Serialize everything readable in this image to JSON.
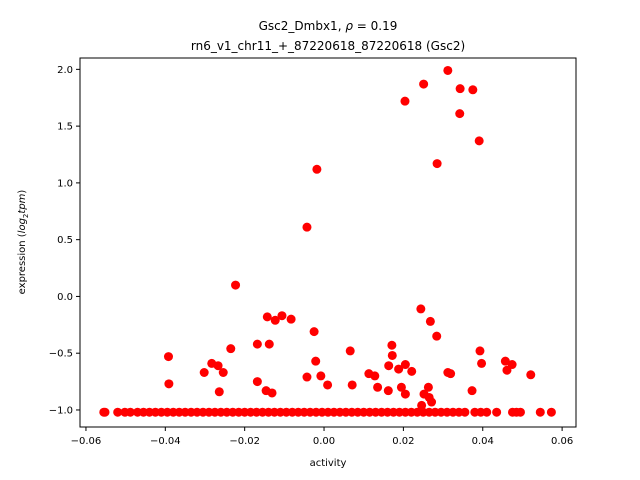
{
  "chart_data": {
    "type": "scatter",
    "title_line1_prefix": "Gsc2_Dmbx1, ",
    "title_rho_symbol": "ρ",
    "title_rho_value": " = 0.19",
    "title_line2": "rn6_v1_chr11_+_87220618_87220618 (Gsc2)",
    "xlabel": "activity",
    "ylabel_prefix": "expression (",
    "ylabel_math_base": "log",
    "ylabel_math_sub": "2",
    "ylabel_math_tail": "tpm",
    "ylabel_suffix": ")",
    "xlim": [
      -0.0615,
      0.0635
    ],
    "ylim": [
      -1.15,
      2.1
    ],
    "xticks": [
      -0.06,
      -0.04,
      -0.02,
      0.0,
      0.02,
      0.04,
      0.06
    ],
    "xtick_labels": [
      "−0.06",
      "−0.04",
      "−0.02",
      "0.00",
      "0.02",
      "0.04",
      "0.06"
    ],
    "yticks": [
      -1.0,
      -0.5,
      0.0,
      0.5,
      1.0,
      1.5,
      2.0
    ],
    "ytick_labels": [
      "−1.0",
      "−0.5",
      "0.0",
      "0.5",
      "1.0",
      "1.5",
      "2.0"
    ],
    "marker_color": "#ff0000",
    "series": [
      {
        "name": "samples",
        "points": [
          [
            0.0312,
            1.99
          ],
          [
            0.0251,
            1.87
          ],
          [
            0.0343,
            1.83
          ],
          [
            0.0375,
            1.82
          ],
          [
            0.0204,
            1.72
          ],
          [
            0.0342,
            1.61
          ],
          [
            0.0391,
            1.37
          ],
          [
            0.0285,
            1.17
          ],
          [
            -0.0018,
            1.12
          ],
          [
            -0.0043,
            0.61
          ],
          [
            -0.0223,
            0.1
          ],
          [
            0.0244,
            -0.11
          ],
          [
            -0.0143,
            -0.18
          ],
          [
            -0.0106,
            -0.17
          ],
          [
            -0.0123,
            -0.21
          ],
          [
            -0.0083,
            -0.2
          ],
          [
            0.0268,
            -0.22
          ],
          [
            -0.0025,
            -0.31
          ],
          [
            0.0284,
            -0.35
          ],
          [
            -0.0138,
            -0.42
          ],
          [
            -0.0168,
            -0.42
          ],
          [
            0.0171,
            -0.43
          ],
          [
            -0.0235,
            -0.46
          ],
          [
            0.0066,
            -0.48
          ],
          [
            0.0393,
            -0.48
          ],
          [
            -0.0392,
            -0.53
          ],
          [
            0.0172,
            -0.52
          ],
          [
            -0.0021,
            -0.57
          ],
          [
            0.0457,
            -0.57
          ],
          [
            -0.0267,
            -0.61
          ],
          [
            -0.0283,
            -0.59
          ],
          [
            0.0163,
            -0.61
          ],
          [
            0.0205,
            -0.6
          ],
          [
            0.0397,
            -0.59
          ],
          [
            0.0474,
            -0.6
          ],
          [
            -0.0302,
            -0.67
          ],
          [
            -0.0254,
            -0.67
          ],
          [
            0.0188,
            -0.64
          ],
          [
            0.0221,
            -0.66
          ],
          [
            0.0312,
            -0.67
          ],
          [
            0.0319,
            -0.68
          ],
          [
            0.0461,
            -0.65
          ],
          [
            0.0521,
            -0.69
          ],
          [
            -0.0043,
            -0.71
          ],
          [
            -0.0008,
            -0.7
          ],
          [
            0.0113,
            -0.68
          ],
          [
            0.0128,
            -0.7
          ],
          [
            -0.0391,
            -0.77
          ],
          [
            -0.0168,
            -0.75
          ],
          [
            0.0009,
            -0.78
          ],
          [
            0.0071,
            -0.78
          ],
          [
            0.0135,
            -0.8
          ],
          [
            0.0195,
            -0.8
          ],
          [
            -0.0146,
            -0.83
          ],
          [
            -0.0264,
            -0.84
          ],
          [
            -0.0131,
            -0.85
          ],
          [
            0.0162,
            -0.83
          ],
          [
            0.0205,
            -0.86
          ],
          [
            0.0263,
            -0.8
          ],
          [
            0.0252,
            -0.86
          ],
          [
            0.0265,
            -0.89
          ],
          [
            0.0373,
            -0.83
          ],
          [
            0.0271,
            -0.93
          ],
          [
            0.0246,
            -0.96
          ],
          [
            -0.0555,
            -1.02
          ],
          [
            -0.0552,
            -1.02
          ],
          [
            -0.052,
            -1.02
          ],
          [
            -0.0502,
            -1.02
          ],
          [
            -0.0488,
            -1.02
          ],
          [
            -0.047,
            -1.02
          ],
          [
            -0.0455,
            -1.02
          ],
          [
            -0.044,
            -1.02
          ],
          [
            -0.0425,
            -1.02
          ],
          [
            -0.041,
            -1.02
          ],
          [
            -0.0395,
            -1.02
          ],
          [
            -0.038,
            -1.02
          ],
          [
            -0.0365,
            -1.02
          ],
          [
            -0.035,
            -1.02
          ],
          [
            -0.0335,
            -1.02
          ],
          [
            -0.032,
            -1.02
          ],
          [
            -0.0305,
            -1.02
          ],
          [
            -0.029,
            -1.02
          ],
          [
            -0.0275,
            -1.02
          ],
          [
            -0.026,
            -1.02
          ],
          [
            -0.0245,
            -1.02
          ],
          [
            -0.023,
            -1.02
          ],
          [
            -0.0215,
            -1.02
          ],
          [
            -0.02,
            -1.02
          ],
          [
            -0.0185,
            -1.02
          ],
          [
            -0.017,
            -1.02
          ],
          [
            -0.0155,
            -1.02
          ],
          [
            -0.014,
            -1.02
          ],
          [
            -0.0125,
            -1.02
          ],
          [
            -0.011,
            -1.02
          ],
          [
            -0.0095,
            -1.02
          ],
          [
            -0.008,
            -1.02
          ],
          [
            -0.0065,
            -1.02
          ],
          [
            -0.005,
            -1.02
          ],
          [
            -0.0035,
            -1.02
          ],
          [
            -0.002,
            -1.02
          ],
          [
            -0.0005,
            -1.02
          ],
          [
            0.001,
            -1.02
          ],
          [
            0.0025,
            -1.02
          ],
          [
            0.004,
            -1.02
          ],
          [
            0.0055,
            -1.02
          ],
          [
            0.007,
            -1.02
          ],
          [
            0.0085,
            -1.02
          ],
          [
            0.01,
            -1.02
          ],
          [
            0.0115,
            -1.02
          ],
          [
            0.013,
            -1.02
          ],
          [
            0.0145,
            -1.02
          ],
          [
            0.016,
            -1.02
          ],
          [
            0.0175,
            -1.02
          ],
          [
            0.019,
            -1.02
          ],
          [
            0.0205,
            -1.02
          ],
          [
            0.022,
            -1.02
          ],
          [
            0.0235,
            -1.02
          ],
          [
            0.025,
            -1.02
          ],
          [
            0.0265,
            -1.02
          ],
          [
            0.028,
            -1.02
          ],
          [
            0.0295,
            -1.02
          ],
          [
            0.031,
            -1.02
          ],
          [
            0.0325,
            -1.02
          ],
          [
            0.034,
            -1.02
          ],
          [
            0.0355,
            -1.02
          ],
          [
            0.038,
            -1.02
          ],
          [
            0.0395,
            -1.02
          ],
          [
            0.041,
            -1.02
          ],
          [
            0.0435,
            -1.02
          ],
          [
            0.0475,
            -1.02
          ],
          [
            0.0485,
            -1.02
          ],
          [
            0.0495,
            -1.02
          ],
          [
            0.0545,
            -1.02
          ],
          [
            0.0573,
            -1.02
          ]
        ]
      }
    ]
  }
}
